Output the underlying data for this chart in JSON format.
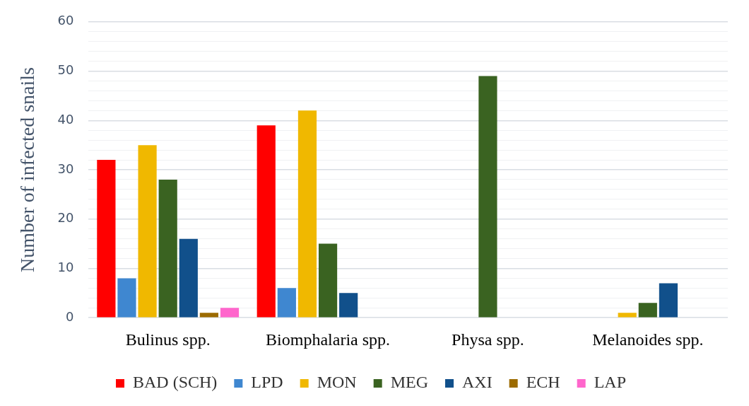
{
  "chart_data": {
    "type": "bar",
    "ylabel": "Number of infected snails",
    "categories": [
      "Bulinus spp.",
      "Biomphalaria spp.",
      "Physa spp.",
      "Melanoides spp."
    ],
    "series": [
      {
        "name": "BAD (SCH)",
        "color": "#ff0000",
        "values": [
          32,
          39,
          0,
          0
        ]
      },
      {
        "name": "LPD",
        "color": "#3f87d0",
        "values": [
          8,
          6,
          0,
          0
        ]
      },
      {
        "name": "MON",
        "color": "#f0b800",
        "values": [
          35,
          42,
          0,
          1
        ]
      },
      {
        "name": "MEG",
        "color": "#3a6321",
        "values": [
          28,
          15,
          49,
          3
        ]
      },
      {
        "name": "AXI",
        "color": "#11508b",
        "values": [
          16,
          5,
          0,
          7
        ]
      },
      {
        "name": "ECH",
        "color": "#9c6b00",
        "values": [
          1,
          0,
          0,
          0
        ]
      },
      {
        "name": "LAP",
        "color": "#ff66cc",
        "values": [
          2,
          0,
          0,
          0
        ]
      }
    ],
    "ylim": [
      0,
      60
    ],
    "yticks": [
      0,
      {
        "value": 2,
        "label": null
      },
      {
        "value": 4,
        "label": null
      },
      {
        "value": 6,
        "label": null
      },
      {
        "value": 8,
        "label": null
      },
      10,
      {
        "value": 12,
        "label": null
      },
      {
        "value": 14,
        "label": null
      },
      {
        "value": 16,
        "label": null
      },
      {
        "value": 18,
        "label": null
      },
      20,
      {
        "value": 22,
        "label": null
      },
      {
        "value": 24,
        "label": null
      },
      {
        "value": 26,
        "label": null
      },
      {
        "value": 28,
        "label": null
      },
      30,
      {
        "value": 32,
        "label": null
      },
      {
        "value": 34,
        "label": null
      },
      {
        "value": 36,
        "label": null
      },
      {
        "value": 38,
        "label": null
      },
      40,
      {
        "value": 42,
        "label": null
      },
      {
        "value": 44,
        "label": null
      },
      {
        "value": 46,
        "label": null
      },
      {
        "value": 48,
        "label": null
      },
      50,
      {
        "value": 52,
        "label": null
      },
      {
        "value": 54,
        "label": null
      },
      {
        "value": 56,
        "label": null
      },
      {
        "value": 58,
        "label": null
      },
      60
    ],
    "grid": "y",
    "legend": "bottom"
  }
}
